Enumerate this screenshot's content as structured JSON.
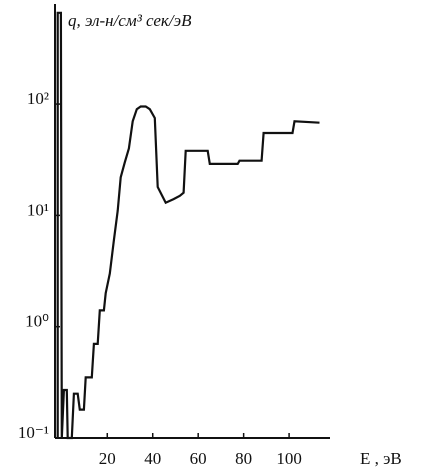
{
  "chart_data": {
    "type": "line",
    "y_label": "q, эл-н/см³ сек/эВ",
    "x_label": "E , эВ",
    "log_y": true,
    "color": "#111111",
    "xlim": [
      -3,
      118
    ],
    "ylim": [
      0.1,
      700
    ],
    "xticks": [
      20,
      40,
      60,
      80,
      100
    ],
    "yticks": [
      {
        "value": 0.1,
        "label": "10⁻¹"
      },
      {
        "value": 1,
        "label": "10⁰"
      },
      {
        "value": 10,
        "label": "10¹"
      },
      {
        "value": 100,
        "label": "10²"
      }
    ],
    "x": [
      -1.8,
      -1.8,
      -0.4,
      0,
      0.9,
      2.2,
      2.6,
      4.4,
      5.3,
      7,
      7.9,
      9.7,
      10.5,
      13.2,
      14.1,
      15.8,
      16.7,
      18.5,
      19.3,
      21.1,
      22.9,
      24.6,
      25.9,
      27.7,
      29.5,
      31.2,
      33,
      34.7,
      36.9,
      38.7,
      40.9,
      42.2,
      45.7,
      49.2,
      51.9,
      53.6,
      54.5,
      64.2,
      65.1,
      77.4,
      78.2,
      87.9,
      88.8,
      101.5,
      102.4,
      113.4
    ],
    "values": [
      0.1,
      660,
      660,
      0.1,
      0.27,
      0.27,
      0.1,
      0.1,
      0.25,
      0.25,
      0.18,
      0.18,
      0.35,
      0.35,
      0.7,
      0.7,
      1.4,
      1.4,
      2,
      3,
      6,
      11,
      22,
      30,
      40,
      70,
      90,
      95,
      95,
      90,
      75,
      18,
      13,
      14,
      15,
      16,
      38,
      38,
      29,
      29,
      31,
      31,
      55,
      55,
      70,
      68
    ]
  }
}
